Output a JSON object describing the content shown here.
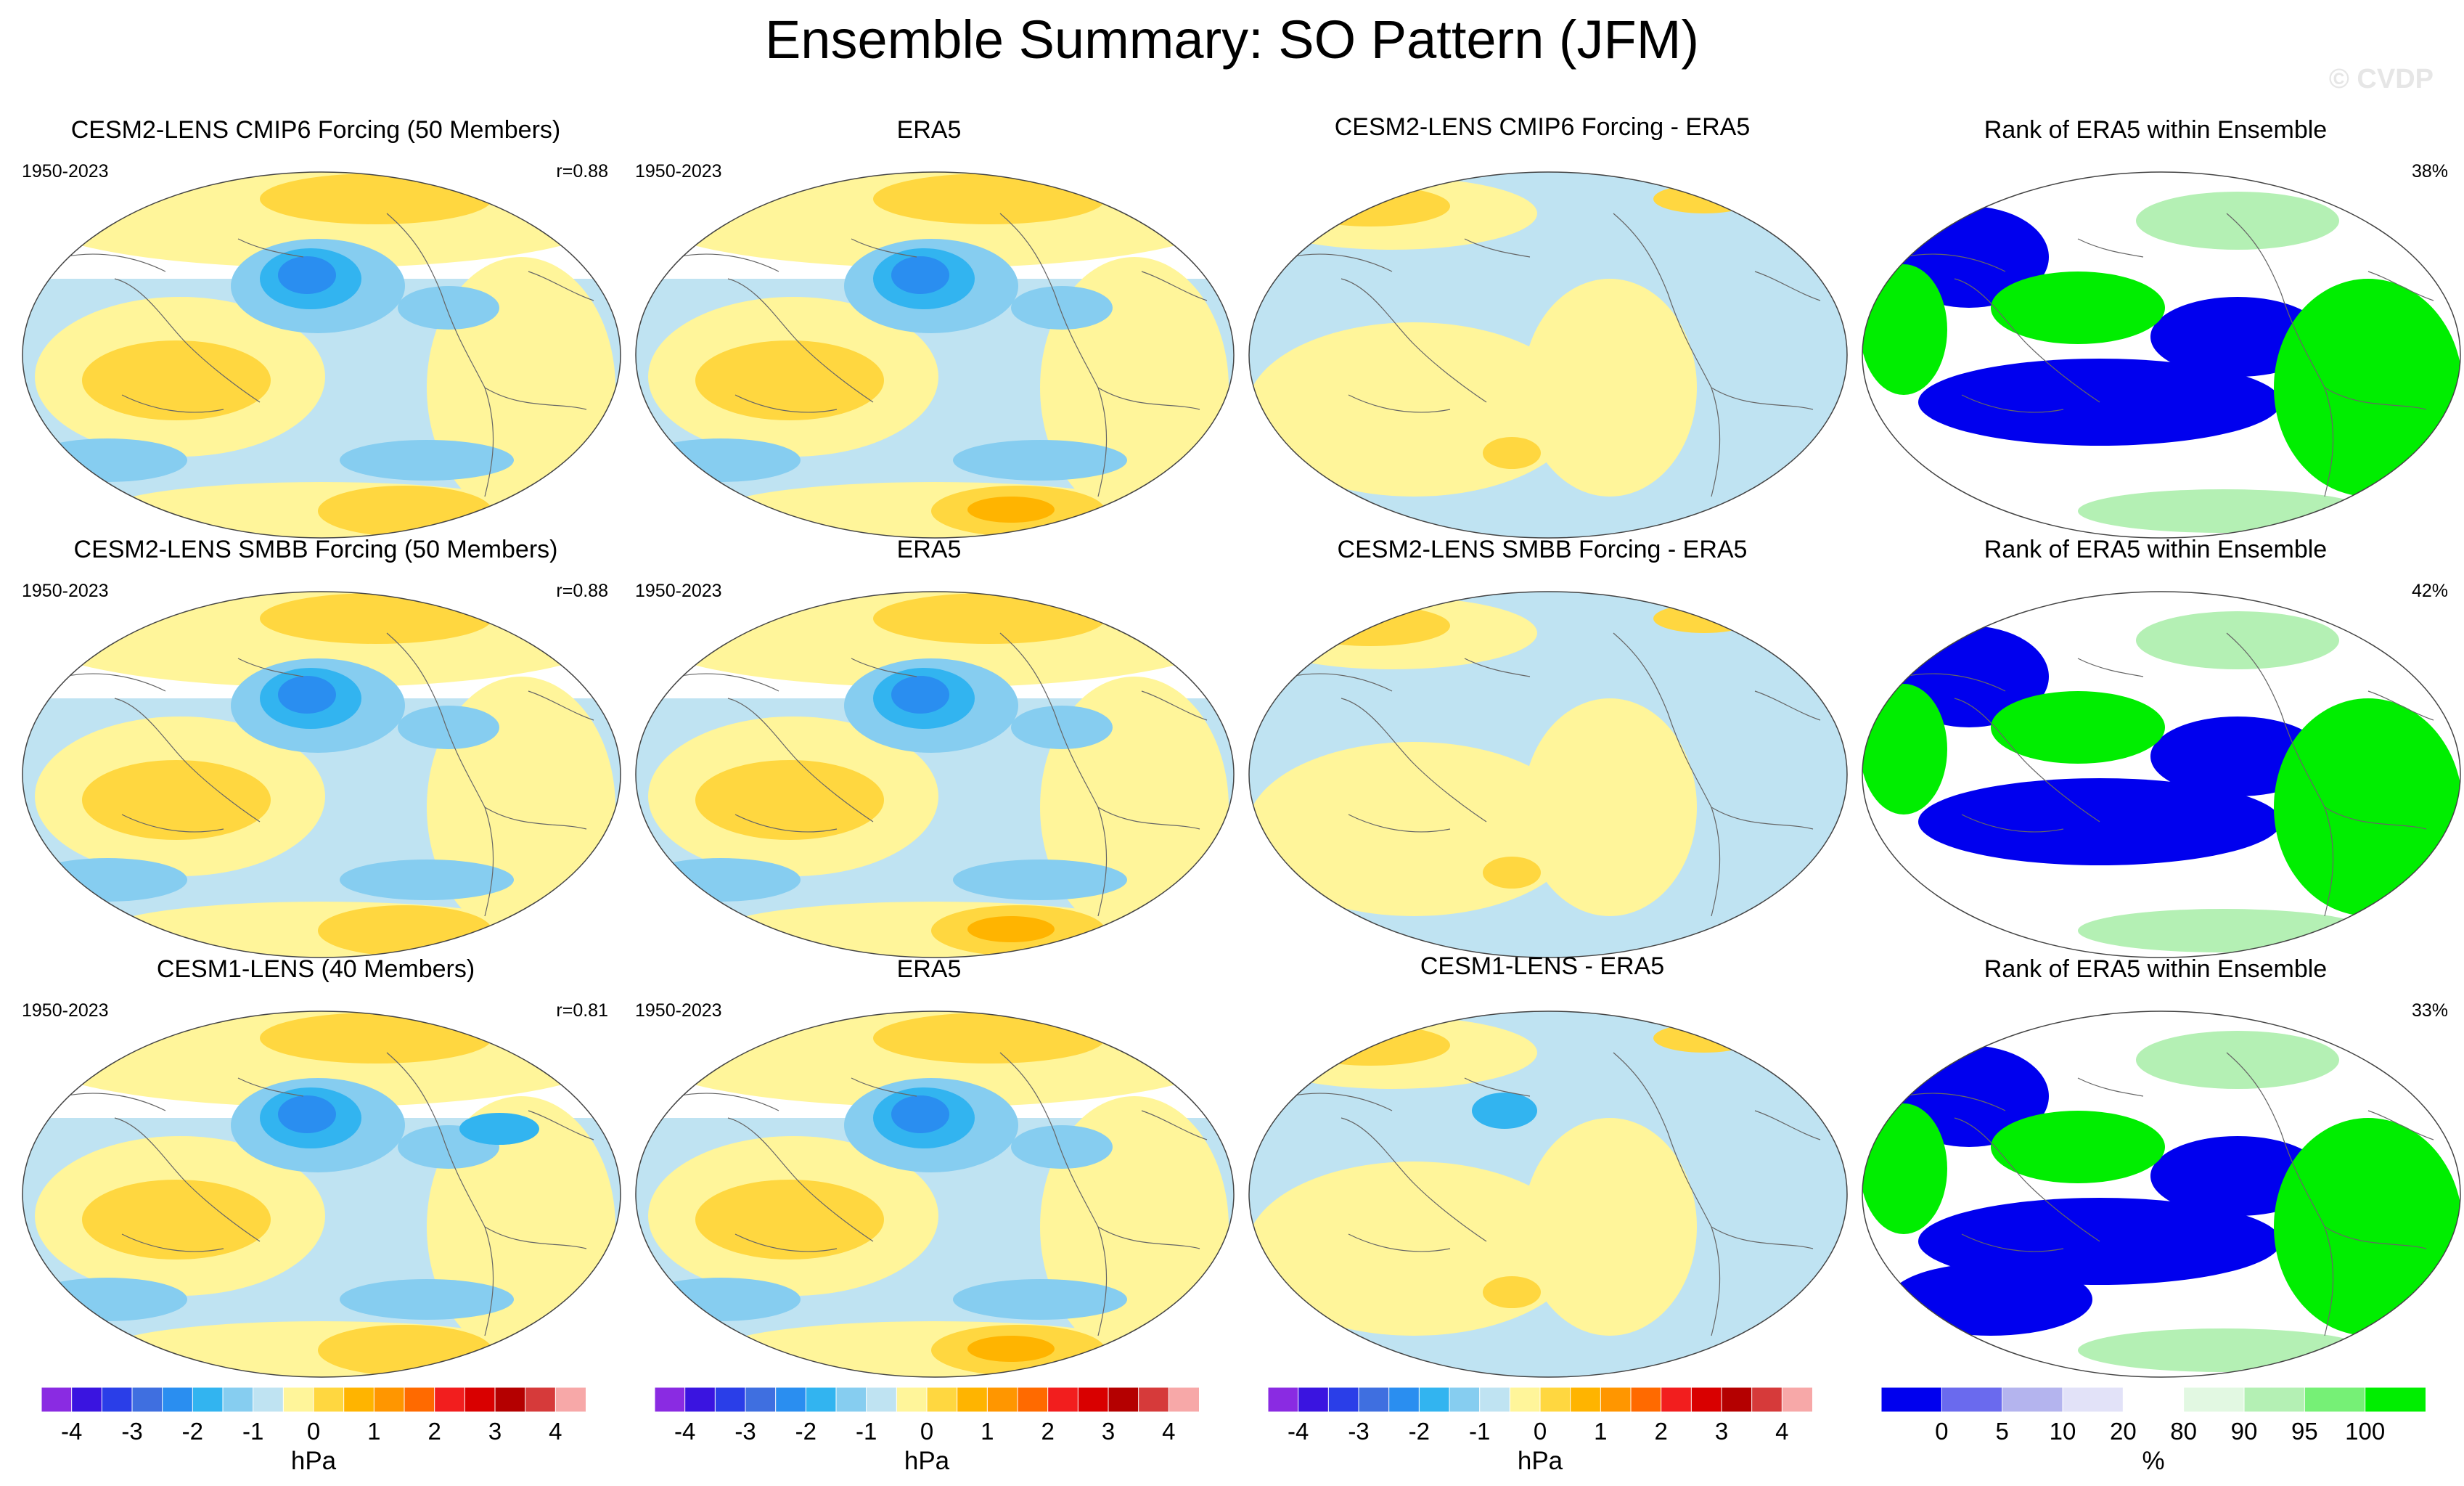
{
  "title": "Ensemble Summary: SO Pattern (JFM)",
  "watermark": "© CVDP",
  "rows": [
    {
      "model": {
        "title": "CESM2-LENS CMIP6 Forcing (50 Members)",
        "period": "1950-2023",
        "corr": "r=0.88"
      },
      "obs": {
        "title": "ERA5",
        "period": "1950-2023"
      },
      "diff": {
        "title": "CESM2-LENS CMIP6 Forcing - ERA5"
      },
      "rank": {
        "title": "Rank of ERA5 within Ensemble",
        "pct": "38%"
      }
    },
    {
      "model": {
        "title": "CESM2-LENS SMBB Forcing (50 Members)",
        "period": "1950-2023",
        "corr": "r=0.88"
      },
      "obs": {
        "title": "ERA5",
        "period": "1950-2023"
      },
      "diff": {
        "title": "CESM2-LENS SMBB Forcing - ERA5"
      },
      "rank": {
        "title": "Rank of ERA5 within Ensemble",
        "pct": "42%"
      }
    },
    {
      "model": {
        "title": "CESM1-LENS (40 Members)",
        "period": "1950-2023",
        "corr": "r=0.81"
      },
      "obs": {
        "title": "ERA5",
        "period": "1950-2023"
      },
      "diff": {
        "title": "CESM1-LENS - ERA5"
      },
      "rank": {
        "title": "Rank of ERA5 within Ensemble",
        "pct": "33%"
      }
    }
  ],
  "colorbars": {
    "hpa": {
      "unit": "hPa",
      "labels": [
        "-4",
        "-3",
        "-2",
        "-1",
        "0",
        "1",
        "2",
        "3",
        "4"
      ],
      "colors": [
        "#8a2be2",
        "#3a14e0",
        "#2a3ee8",
        "#3f6fe0",
        "#2a8ef0",
        "#32b4f0",
        "#86cdf0",
        "#bfe3f2",
        "#fff59a",
        "#ffd740",
        "#ffb400",
        "#ff9600",
        "#ff6a00",
        "#f21e1e",
        "#d90000",
        "#b40000",
        "#d63a3a",
        "#f7a8a8"
      ]
    },
    "rank": {
      "unit": "%",
      "labels": [
        "0",
        "5",
        "10",
        "20",
        "80",
        "90",
        "95",
        "100"
      ],
      "colors": [
        "#0000ee",
        "#6a6aee",
        "#b4b4ee",
        "#e2e2f8",
        "#ffffff",
        "#e2f8e2",
        "#b4f0b4",
        "#76f076",
        "#00ee00"
      ]
    }
  },
  "map_colors": {
    "yellow": "#fff59a",
    "orange": "#ffd740",
    "dark_orange": "#ffb400",
    "light_blue": "#bfe3f2",
    "blue": "#86cdf0",
    "mid_blue": "#32b4f0",
    "deep_blue": "#2a8ef0",
    "rank_blue": "#0000ee",
    "rank_green": "#00ee00",
    "rank_light_green": "#b4f0b4"
  }
}
